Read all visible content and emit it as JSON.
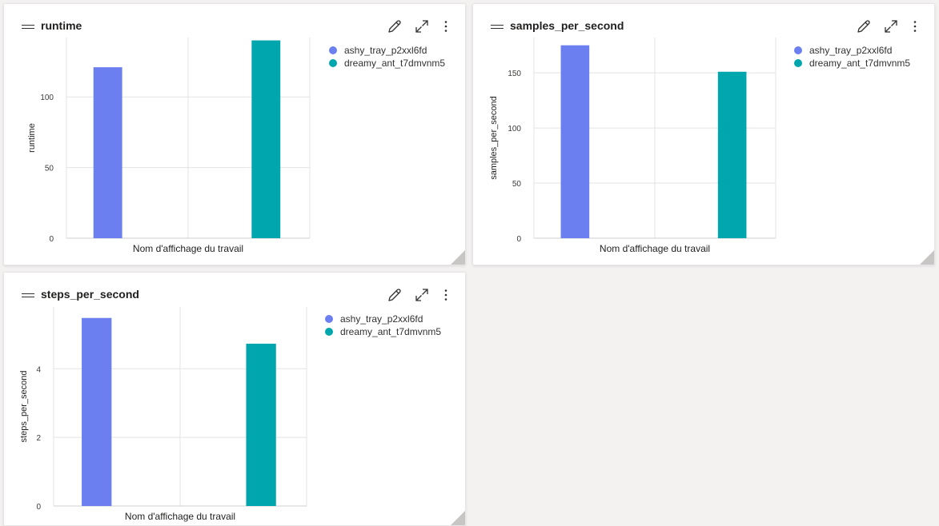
{
  "cards": [
    {
      "title": "runtime"
    },
    {
      "title": "samples_per_second"
    },
    {
      "title": "steps_per_second"
    }
  ],
  "colors": {
    "series_0": "#6b7ff0",
    "series_1": "#00a6ad",
    "grid": "#e3e3e3",
    "axis_text": "#3b3a39"
  },
  "icons": {
    "drag": "drag-handle-icon",
    "edit": "pencil-icon",
    "expand": "expand-icon",
    "more": "more-vertical-icon"
  },
  "chart_data": [
    {
      "type": "bar",
      "title": "runtime",
      "xlabel": "Nom d'affichage du travail",
      "ylabel": "runtime",
      "ylim": [
        0,
        142
      ],
      "yticks": [
        0,
        50,
        100
      ],
      "grid": true,
      "legend": "right",
      "series": [
        {
          "name": "ashy_tray_p2xxl6fd",
          "values": [
            121
          ]
        },
        {
          "name": "dreamy_ant_t7dmvnm5",
          "values": [
            140
          ]
        }
      ]
    },
    {
      "type": "bar",
      "title": "samples_per_second",
      "xlabel": "Nom d'affichage du travail",
      "ylabel": "samples_per_second",
      "ylim": [
        0,
        182
      ],
      "yticks": [
        0,
        50,
        100,
        150
      ],
      "grid": true,
      "legend": "right",
      "series": [
        {
          "name": "ashy_tray_p2xxl6fd",
          "values": [
            175
          ]
        },
        {
          "name": "dreamy_ant_t7dmvnm5",
          "values": [
            151
          ]
        }
      ]
    },
    {
      "type": "bar",
      "title": "steps_per_second",
      "xlabel": "Nom d'affichage du travail",
      "ylabel": "steps_per_second",
      "ylim": [
        0,
        5.8
      ],
      "yticks": [
        0,
        2,
        4
      ],
      "grid": true,
      "legend": "right",
      "series": [
        {
          "name": "ashy_tray_p2xxl6fd",
          "values": [
            5.48
          ]
        },
        {
          "name": "dreamy_ant_t7dmvnm5",
          "values": [
            4.73
          ]
        }
      ]
    }
  ]
}
